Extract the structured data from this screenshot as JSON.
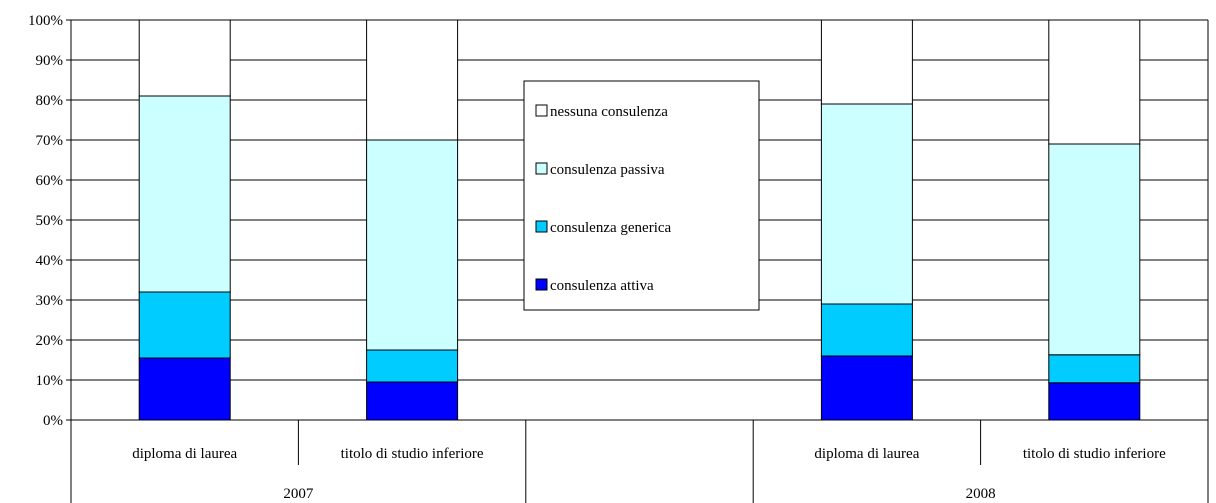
{
  "chart_data": {
    "type": "bar",
    "stacked": true,
    "percent": true,
    "groups": [
      {
        "label": "2007",
        "categories": [
          "diploma di laurea",
          "titolo di studio inferiore"
        ]
      },
      {
        "label": "",
        "categories": [
          ""
        ]
      },
      {
        "label": "2008",
        "categories": [
          "diploma di laurea",
          "titolo di studio inferiore"
        ]
      }
    ],
    "categories": [
      "diploma di laurea",
      "titolo di studio inferiore",
      "",
      "diploma di laurea",
      "titolo di studio inferiore"
    ],
    "series": [
      {
        "name": "consulenza attiva",
        "color": "#0000ff",
        "values": [
          15.5,
          9.5,
          null,
          16,
          9.3
        ]
      },
      {
        "name": "consulenza generica",
        "color": "#00ccff",
        "values": [
          16.5,
          8,
          null,
          13,
          7
        ]
      },
      {
        "name": "consulenza passiva",
        "color": "#ccffff",
        "values": [
          49,
          52.5,
          null,
          50,
          52.7
        ]
      },
      {
        "name": "nessuna consulenza",
        "color": "#ffffff",
        "values": [
          19,
          30,
          null,
          21,
          31
        ]
      }
    ],
    "yticks": [
      "0%",
      "10%",
      "20%",
      "30%",
      "40%",
      "50%",
      "60%",
      "70%",
      "80%",
      "90%",
      "100%"
    ],
    "ylim": [
      0,
      100
    ],
    "grid": true,
    "legend_position": "center",
    "title": "",
    "xlabel": "",
    "ylabel": ""
  }
}
